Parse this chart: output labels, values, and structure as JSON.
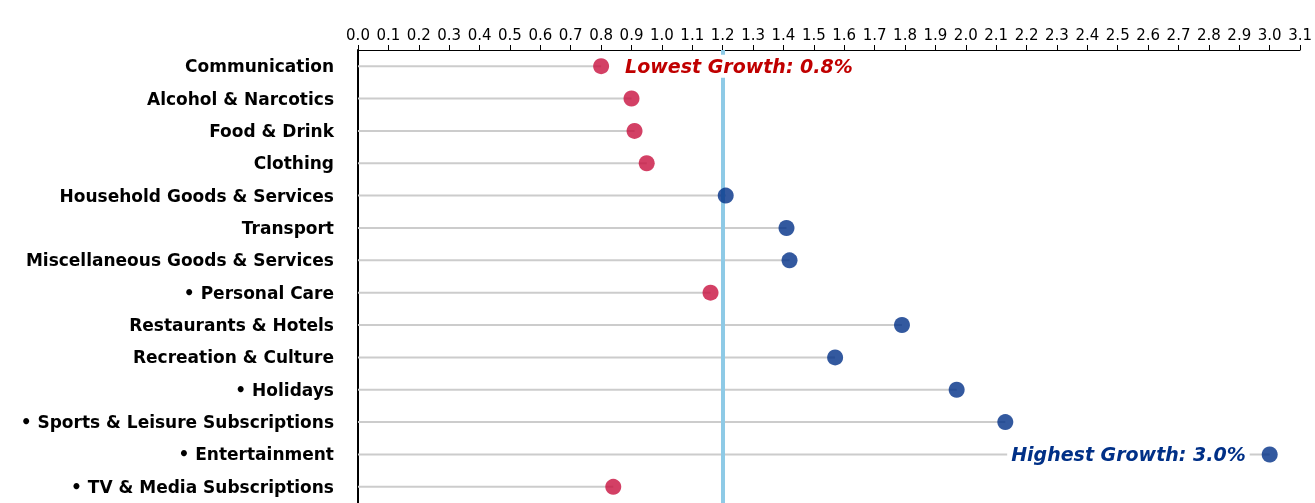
{
  "chart_data": {
    "type": "lollipop",
    "orientation": "horizontal",
    "categories": [
      "Communication",
      "Alcohol & Narcotics",
      "Food & Drink",
      "Clothing",
      "Household Goods & Services",
      "Transport",
      "Miscellaneous Goods & Services",
      "• Personal Care",
      "Restaurants & Hotels",
      "Recreation & Culture",
      "• Holidays",
      "• Sports & Leisure Subscriptions",
      "• Entertainment",
      "• TV & Media Subscriptions"
    ],
    "values": [
      0.8,
      0.9,
      0.91,
      0.95,
      1.21,
      1.41,
      1.42,
      1.16,
      1.79,
      1.57,
      1.97,
      2.13,
      3.0,
      0.84
    ],
    "colors": [
      "#c8103e",
      "#c8103e",
      "#c8103e",
      "#c8103e",
      "#003087",
      "#003087",
      "#003087",
      "#c8103e",
      "#003087",
      "#003087",
      "#003087",
      "#003087",
      "#003087",
      "#c8103e"
    ],
    "xlim": [
      0,
      3.1
    ],
    "xticks": [
      {
        "value": 0,
        "label": "0.0"
      },
      0.1,
      0.2,
      0.3,
      0.4,
      0.5,
      0.6,
      0.7,
      0.8,
      0.9,
      {
        "value": 1,
        "label": "1.0"
      },
      1.1,
      1.2,
      1.3,
      1.4,
      1.5,
      1.6,
      1.7,
      1.8,
      1.9,
      {
        "value": 2,
        "label": "2.0"
      },
      2.1,
      2.2,
      2.3,
      2.4,
      2.5,
      2.6,
      2.7,
      2.8,
      2.9,
      {
        "value": 3,
        "label": "3.0"
      },
      3.1
    ],
    "ref_lines": [
      {
        "axis": "x",
        "value": 1.2,
        "color": "#8ecae6"
      }
    ],
    "annotations": [
      {
        "text": "Lowest Growth: 0.8%",
        "x": 0.8,
        "y": "Communication"
      },
      {
        "text": "Highest Growth: 3.0%",
        "x": 3.0,
        "y": "• Entertainment"
      }
    ],
    "marker": "circle"
  }
}
